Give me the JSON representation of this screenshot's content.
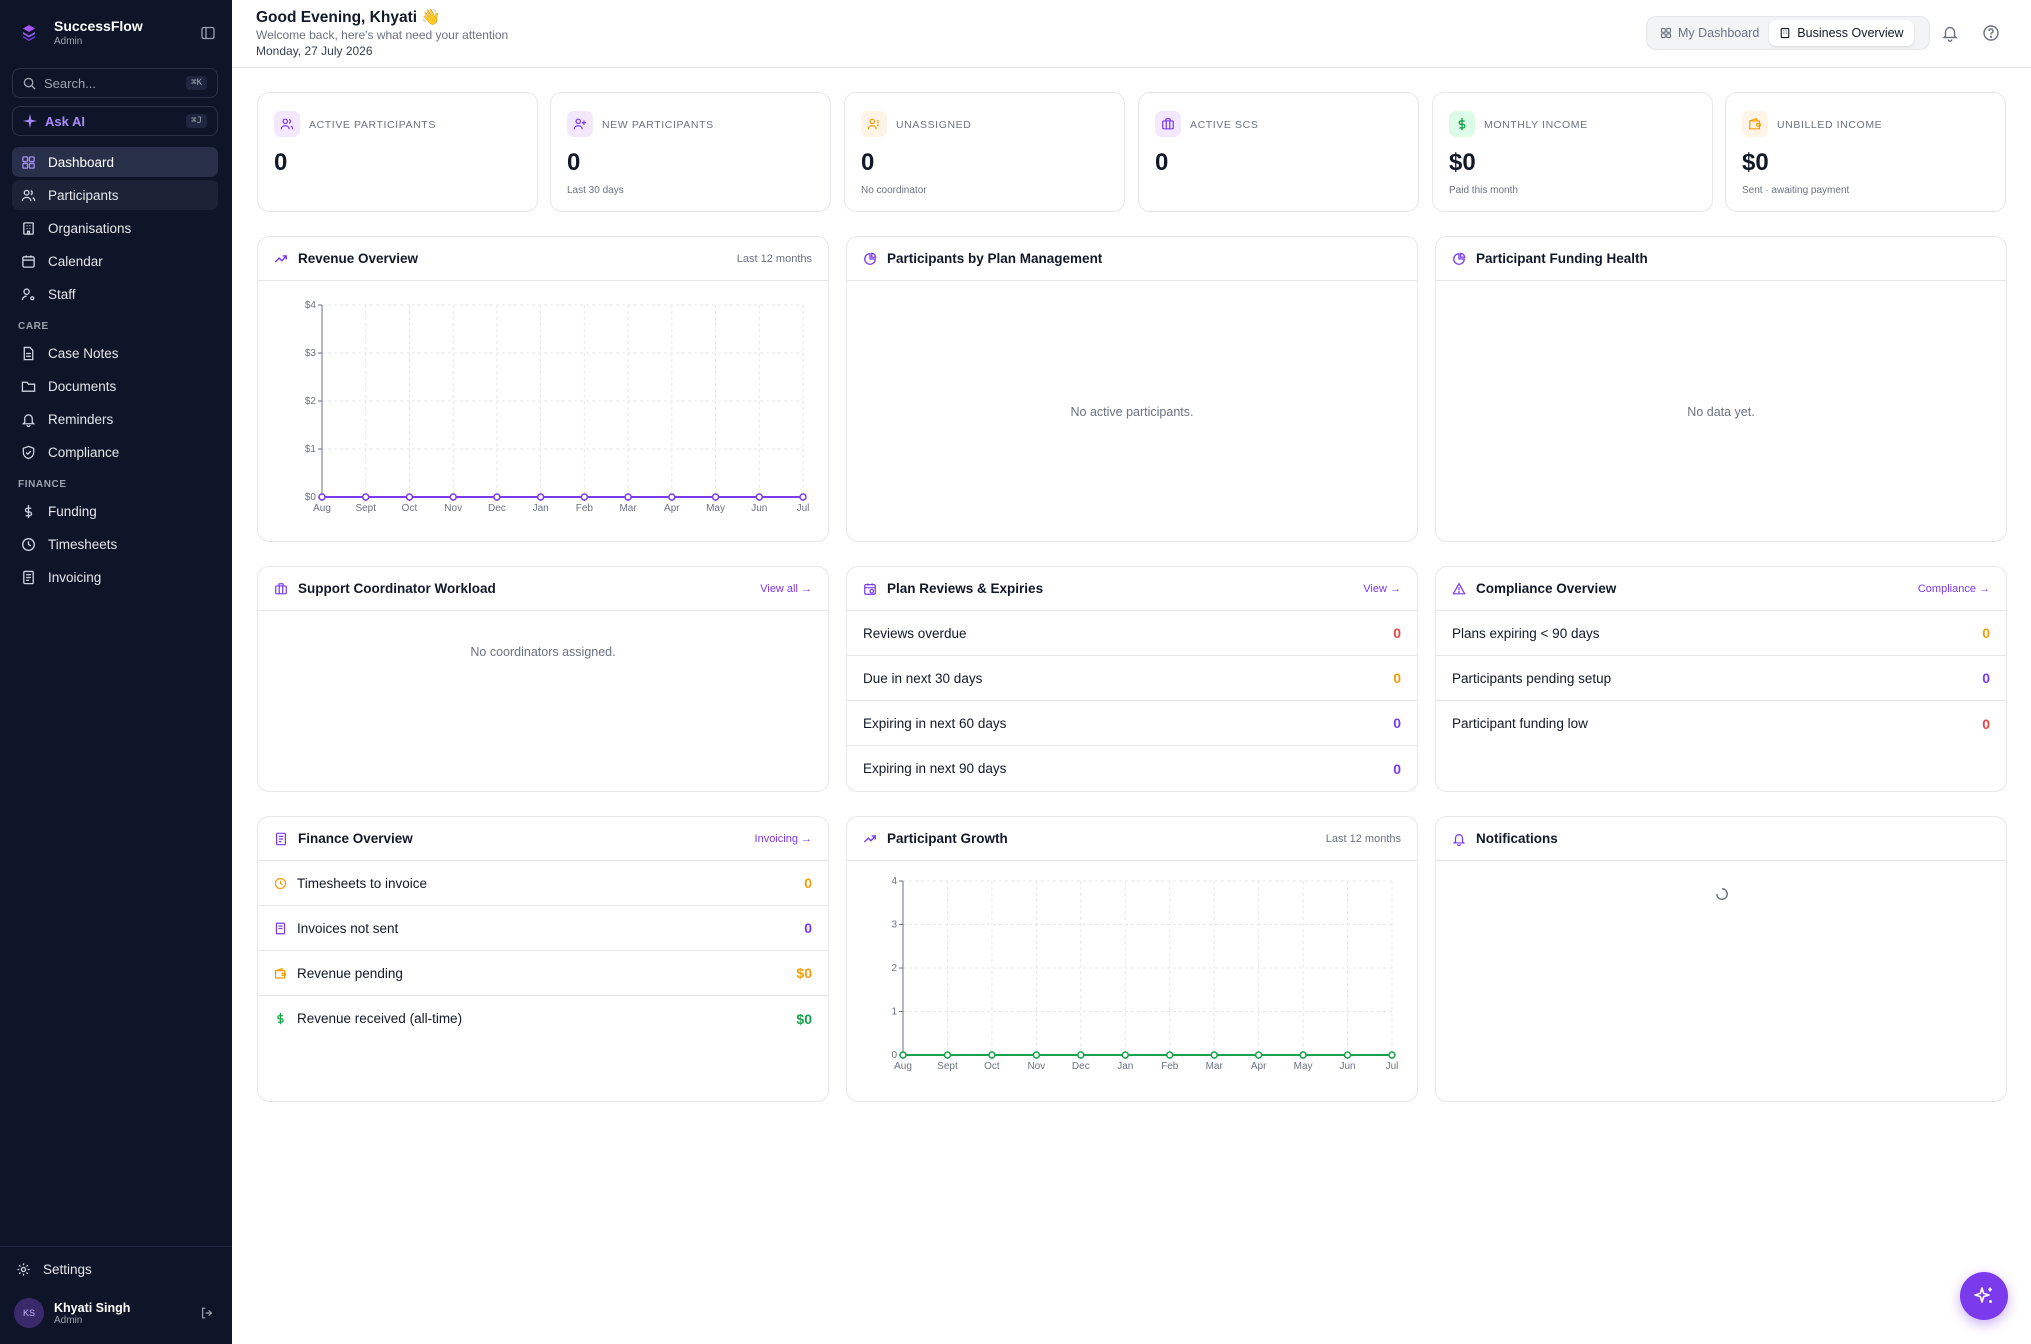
{
  "sidebar": {
    "brand_name": "SuccessFlow",
    "brand_role": "Admin",
    "search_placeholder": "Search...",
    "search_shortcut": "⌘K",
    "ask_ai_label": "Ask AI",
    "ask_ai_shortcut": "⌘J",
    "main_items": [
      {
        "label": "Dashboard",
        "icon": "dashboard-icon",
        "state": "active"
      },
      {
        "label": "Participants",
        "icon": "users-icon",
        "state": "hover"
      },
      {
        "label": "Organisations",
        "icon": "building-icon"
      },
      {
        "label": "Calendar",
        "icon": "calendar-icon"
      },
      {
        "label": "Staff",
        "icon": "user-cog-icon"
      }
    ],
    "care_label": "CARE",
    "care_items": [
      {
        "label": "Case Notes",
        "icon": "file-text-icon"
      },
      {
        "label": "Documents",
        "icon": "folder-icon"
      },
      {
        "label": "Reminders",
        "icon": "bell-icon"
      },
      {
        "label": "Compliance",
        "icon": "shield-icon"
      }
    ],
    "finance_label": "FINANCE",
    "finance_items": [
      {
        "label": "Funding",
        "icon": "dollar-icon"
      },
      {
        "label": "Timesheets",
        "icon": "clock-icon"
      },
      {
        "label": "Invoicing",
        "icon": "receipt-icon"
      }
    ],
    "settings_label": "Settings",
    "user": {
      "initials": "KS",
      "name": "Khyati Singh",
      "role": "Admin"
    }
  },
  "header": {
    "greeting": "Good Evening, Khyati 👋",
    "subtitle": "Welcome back, here's what need your attention",
    "date": "Monday, 27 July 2026",
    "tabs": [
      {
        "label": "My Dashboard",
        "active": false
      },
      {
        "label": "Business Overview",
        "active": true
      }
    ]
  },
  "stats": [
    {
      "label": "ACTIVE PARTICIPANTS",
      "value": "0",
      "sub": "",
      "icon": "users-icon",
      "color": "#7c3aed",
      "bg": "#f3e8ff"
    },
    {
      "label": "NEW PARTICIPANTS",
      "value": "0",
      "sub": "Last 30 days",
      "icon": "user-plus-icon",
      "color": "#7c3aed",
      "bg": "#f3e8ff"
    },
    {
      "label": "UNASSIGNED",
      "value": "0",
      "sub": "No coordinator",
      "icon": "user-alert-icon",
      "color": "#f59e0b",
      "bg": "#fff4e5"
    },
    {
      "label": "ACTIVE SCS",
      "value": "0",
      "sub": "",
      "icon": "briefcase-icon",
      "color": "#7c3aed",
      "bg": "#f3e8ff"
    },
    {
      "label": "MONTHLY INCOME",
      "value": "$0",
      "sub": "Paid this month",
      "icon": "dollar-icon",
      "color": "#16a34a",
      "bg": "#dcfce7"
    },
    {
      "label": "UNBILLED INCOME",
      "value": "$0",
      "sub": "Sent · awaiting payment",
      "icon": "wallet-icon",
      "color": "#f59e0b",
      "bg": "#fff4e5"
    }
  ],
  "revenue": {
    "title": "Revenue Overview",
    "meta": "Last 12 months"
  },
  "plan_mgmt": {
    "title": "Participants by Plan Management",
    "empty": "No active participants."
  },
  "funding_health": {
    "title": "Participant Funding Health",
    "empty": "No data yet."
  },
  "workload": {
    "title": "Support Coordinator Workload",
    "link": "View all →",
    "empty": "No coordinators assigned."
  },
  "plan_reviews": {
    "title": "Plan Reviews & Expiries",
    "link": "View →",
    "rows": [
      {
        "label": "Reviews overdue",
        "value": "0",
        "color": "red"
      },
      {
        "label": "Due in next 30 days",
        "value": "0",
        "color": "orange"
      },
      {
        "label": "Expiring in next 60 days",
        "value": "0",
        "color": "purple"
      },
      {
        "label": "Expiring in next 90 days",
        "value": "0",
        "color": "purple"
      }
    ]
  },
  "compliance": {
    "title": "Compliance Overview",
    "link": "Compliance →",
    "rows": [
      {
        "label": "Plans expiring < 90 days",
        "value": "0",
        "color": "orange"
      },
      {
        "label": "Participants pending setup",
        "value": "0",
        "color": "purple"
      },
      {
        "label": "Participant funding low",
        "value": "0",
        "color": "red"
      }
    ]
  },
  "finance": {
    "title": "Finance Overview",
    "link": "Invoicing →",
    "rows": [
      {
        "label": "Timesheets to invoice",
        "value": "0",
        "color": "orange",
        "icon": "timesheet-icon"
      },
      {
        "label": "Invoices not sent",
        "value": "0",
        "color": "purple",
        "icon": "receipt-icon"
      },
      {
        "label": "Revenue pending",
        "value": "$0",
        "color": "orange",
        "icon": "wallet-icon"
      },
      {
        "label": "Revenue received (all-time)",
        "value": "$0",
        "color": "green",
        "icon": "dollar-icon"
      }
    ]
  },
  "growth": {
    "title": "Participant Growth",
    "meta": "Last 12 months"
  },
  "notifications": {
    "title": "Notifications"
  },
  "chart_data": [
    {
      "type": "line",
      "title": "Revenue Overview",
      "x": [
        "Aug",
        "Sept",
        "Oct",
        "Nov",
        "Dec",
        "Jan",
        "Feb",
        "Mar",
        "Apr",
        "May",
        "Jun",
        "Jul"
      ],
      "series": [
        {
          "values": [
            0,
            0,
            0,
            0,
            0,
            0,
            0,
            0,
            0,
            0,
            0,
            0
          ]
        }
      ],
      "yticks": [
        "$0",
        "$1",
        "$2",
        "$3",
        "$4"
      ],
      "ylim": [
        0,
        4
      ],
      "grid": true,
      "color": "#7c3aed"
    },
    {
      "type": "line",
      "title": "Participant Growth",
      "x": [
        "Aug",
        "Sept",
        "Oct",
        "Nov",
        "Dec",
        "Jan",
        "Feb",
        "Mar",
        "Apr",
        "May",
        "Jun",
        "Jul"
      ],
      "series": [
        {
          "values": [
            0,
            0,
            0,
            0,
            0,
            0,
            0,
            0,
            0,
            0,
            0,
            0
          ]
        }
      ],
      "yticks": [
        "0",
        "1",
        "2",
        "3",
        "4"
      ],
      "ylim": [
        0,
        4
      ],
      "grid": true,
      "color": "#16a34a"
    }
  ]
}
